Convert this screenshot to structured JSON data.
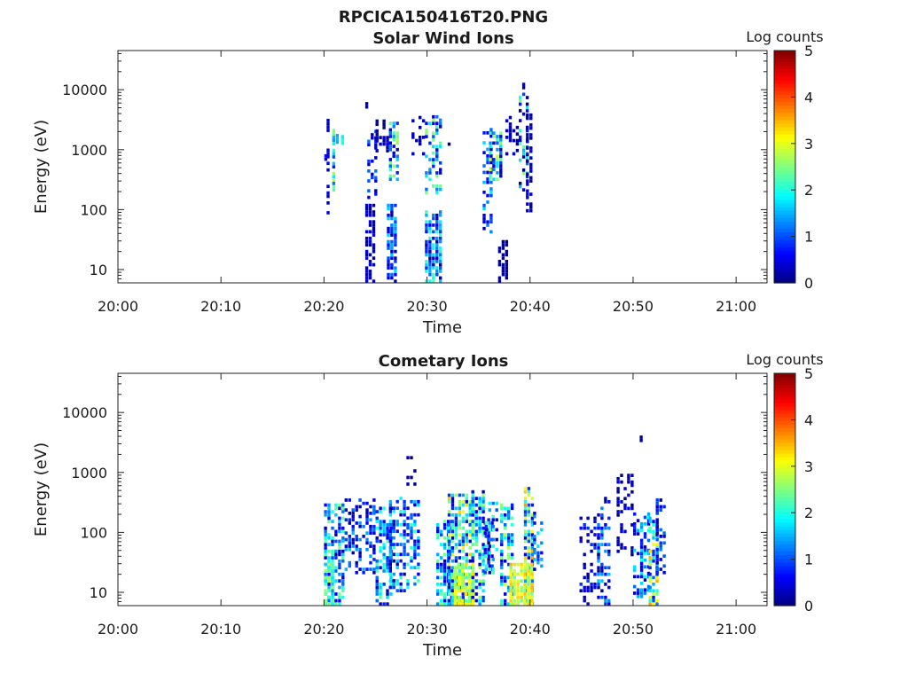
{
  "figure_title": "RPCICA150416T20.PNG",
  "chart_data": [
    {
      "type": "heatmap",
      "title": "Solar Wind Ions",
      "xlabel": "Time",
      "ylabel": "Energy (eV)",
      "x_range": [
        "20:00",
        "21:03"
      ],
      "y_range": [
        6,
        45000
      ],
      "y_scale": "log",
      "x_ticks": [
        "20:00",
        "20:10",
        "20:20",
        "20:30",
        "20:40",
        "20:50",
        "21:00"
      ],
      "y_ticks": [
        "10",
        "100",
        "1000",
        "10000"
      ],
      "colorbar": {
        "label": "Log counts",
        "range": [
          0,
          5
        ],
        "ticks": [
          "0",
          "1",
          "2",
          "3",
          "4",
          "5"
        ],
        "colormap": "jet"
      },
      "clusters": [
        {
          "t": [
            20.03,
            20.03
          ],
          "e": [
            650,
            1500
          ],
          "level": [
            0.4,
            0.8
          ],
          "density": 0.5
        },
        {
          "t": [
            20.25,
            20.45
          ],
          "e": [
            50,
            3000
          ],
          "level": [
            0.1,
            0.6
          ],
          "density": 0.35
        },
        {
          "t": [
            20.8,
            21.1
          ],
          "e": [
            200,
            2500
          ],
          "level": [
            0.6,
            2.8
          ],
          "density": 0.7
        },
        {
          "t": [
            21.15,
            21.3
          ],
          "e": [
            1100,
            1900
          ],
          "level": [
            1.4,
            2.3
          ],
          "density": 0.6
        },
        {
          "t": [
            21.65,
            21.75
          ],
          "e": [
            1200,
            1700
          ],
          "level": [
            1.5,
            2.2
          ],
          "density": 0.8
        },
        {
          "t": [
            24.0,
            24.2
          ],
          "e": [
            1200,
            7500
          ],
          "level": [
            0.0,
            0.3
          ],
          "density": 0.3
        },
        {
          "t": [
            24.2,
            24.9
          ],
          "e": [
            150,
            2000
          ],
          "level": [
            0.1,
            1.2
          ],
          "density": 0.45
        },
        {
          "t": [
            24.0,
            24.7
          ],
          "e": [
            6,
            120
          ],
          "level": [
            0.0,
            0.6
          ],
          "density": 0.7
        },
        {
          "t": [
            25.0,
            26.2
          ],
          "e": [
            900,
            3000
          ],
          "level": [
            0.0,
            0.5
          ],
          "density": 0.3
        },
        {
          "t": [
            26.3,
            27.0
          ],
          "e": [
            300,
            3000
          ],
          "level": [
            0.1,
            2.8
          ],
          "density": 0.5
        },
        {
          "t": [
            26.1,
            27.0
          ],
          "e": [
            6,
            120
          ],
          "level": [
            0.1,
            1.8
          ],
          "density": 0.7
        },
        {
          "t": [
            28.5,
            29.8
          ],
          "e": [
            800,
            3500
          ],
          "level": [
            0.0,
            0.4
          ],
          "density": 0.25
        },
        {
          "t": [
            29.8,
            31.4
          ],
          "e": [
            180,
            3500
          ],
          "level": [
            0.3,
            2.7
          ],
          "density": 0.5
        },
        {
          "t": [
            29.8,
            31.4
          ],
          "e": [
            6,
            90
          ],
          "level": [
            0.2,
            2.3
          ],
          "density": 0.8
        },
        {
          "t": [
            32.0,
            32.2
          ],
          "e": [
            900,
            1200
          ],
          "level": [
            0.0,
            0.3
          ],
          "density": 0.5
        },
        {
          "t": [
            35.4,
            36.2
          ],
          "e": [
            40,
            2500
          ],
          "level": [
            0.0,
            1.8
          ],
          "density": 0.4
        },
        {
          "t": [
            36.0,
            37.1
          ],
          "e": [
            300,
            1800
          ],
          "level": [
            0.2,
            2.9
          ],
          "density": 0.55
        },
        {
          "t": [
            36.9,
            37.6
          ],
          "e": [
            6,
            30
          ],
          "level": [
            0.0,
            0.2
          ],
          "density": 0.6
        },
        {
          "t": [
            37.6,
            38.7
          ],
          "e": [
            800,
            3500
          ],
          "level": [
            0.0,
            0.5
          ],
          "density": 0.3
        },
        {
          "t": [
            38.9,
            39.6
          ],
          "e": [
            200,
            12000
          ],
          "level": [
            0.0,
            2.6
          ],
          "density": 0.45
        },
        {
          "t": [
            39.6,
            40.2
          ],
          "e": [
            90,
            4200
          ],
          "level": [
            0.0,
            0.6
          ],
          "density": 0.5
        }
      ]
    },
    {
      "type": "heatmap",
      "title": "Cometary Ions",
      "xlabel": "Time",
      "ylabel": "Energy (eV)",
      "x_range": [
        "20:00",
        "21:03"
      ],
      "y_range": [
        6,
        45000
      ],
      "y_scale": "log",
      "x_ticks": [
        "20:00",
        "20:10",
        "20:20",
        "20:30",
        "20:40",
        "20:50",
        "21:00"
      ],
      "y_ticks": [
        "10",
        "100",
        "1000",
        "10000"
      ],
      "colorbar": {
        "label": "Log counts",
        "range": [
          0,
          5
        ],
        "ticks": [
          "0",
          "1",
          "2",
          "3",
          "4",
          "5"
        ],
        "colormap": "jet"
      },
      "clusters": [
        {
          "t": [
            20.0,
            21.8
          ],
          "e": [
            6,
            300
          ],
          "level": [
            0.2,
            2.5
          ],
          "density": 0.6
        },
        {
          "t": [
            20.0,
            20.8
          ],
          "e": [
            6,
            30
          ],
          "level": [
            1.6,
            2.8
          ],
          "density": 0.75
        },
        {
          "t": [
            22.0,
            24.9
          ],
          "e": [
            20,
            350
          ],
          "level": [
            0.1,
            1.6
          ],
          "density": 0.45
        },
        {
          "t": [
            25.0,
            26.5
          ],
          "e": [
            6,
            250
          ],
          "level": [
            0.3,
            2.4
          ],
          "density": 0.55
        },
        {
          "t": [
            26.3,
            29.1
          ],
          "e": [
            10,
            350
          ],
          "level": [
            0.1,
            2.2
          ],
          "density": 0.5
        },
        {
          "t": [
            28.0,
            29.0
          ],
          "e": [
            600,
            1700
          ],
          "level": [
            0.0,
            0.4
          ],
          "density": 0.25
        },
        {
          "t": [
            30.9,
            32.5
          ],
          "e": [
            6,
            150
          ],
          "level": [
            0.2,
            2.6
          ],
          "density": 0.6
        },
        {
          "t": [
            32.0,
            34.3
          ],
          "e": [
            6,
            400
          ],
          "level": [
            0.3,
            3.4
          ],
          "density": 0.65
        },
        {
          "t": [
            34.3,
            35.5
          ],
          "e": [
            6,
            450
          ],
          "level": [
            0.3,
            2.7
          ],
          "density": 0.6
        },
        {
          "t": [
            35.5,
            36.2
          ],
          "e": [
            20,
            200
          ],
          "level": [
            0.0,
            1.0
          ],
          "density": 0.4
        },
        {
          "t": [
            32.6,
            34.4
          ],
          "e": [
            6,
            30
          ],
          "level": [
            2.2,
            3.3
          ],
          "density": 0.7
        },
        {
          "t": [
            35.6,
            36.8
          ],
          "e": [
            20,
            300
          ],
          "level": [
            0.3,
            2.4
          ],
          "density": 0.5
        },
        {
          "t": [
            37.1,
            38.3
          ],
          "e": [
            6,
            300
          ],
          "level": [
            0.3,
            2.9
          ],
          "density": 0.55
        },
        {
          "t": [
            39.4,
            40.3
          ],
          "e": [
            6,
            550
          ],
          "level": [
            0.5,
            3.6
          ],
          "density": 0.7
        },
        {
          "t": [
            38.0,
            40.3
          ],
          "e": [
            6,
            30
          ],
          "level": [
            2.4,
            3.5
          ],
          "density": 0.75
        },
        {
          "t": [
            40.3,
            41.1
          ],
          "e": [
            20,
            200
          ],
          "level": [
            0.3,
            1.8
          ],
          "density": 0.5
        },
        {
          "t": [
            44.8,
            46.5
          ],
          "e": [
            6,
            200
          ],
          "level": [
            0.0,
            1.0
          ],
          "density": 0.35
        },
        {
          "t": [
            46.5,
            47.6
          ],
          "e": [
            6,
            350
          ],
          "level": [
            0.1,
            1.6
          ],
          "density": 0.5
        },
        {
          "t": [
            48.4,
            50.0
          ],
          "e": [
            40,
            900
          ],
          "level": [
            0.0,
            0.6
          ],
          "density": 0.35
        },
        {
          "t": [
            50.0,
            51.5
          ],
          "e": [
            8,
            200
          ],
          "level": [
            0.2,
            2.0
          ],
          "density": 0.5
        },
        {
          "t": [
            51.5,
            52.2
          ],
          "e": [
            6,
            170
          ],
          "level": [
            0.4,
            3.6
          ],
          "density": 0.65
        },
        {
          "t": [
            52.2,
            53.2
          ],
          "e": [
            20,
            400
          ],
          "level": [
            0.0,
            1.4
          ],
          "density": 0.45
        },
        {
          "t": [
            50.3,
            50.8
          ],
          "e": [
            3200,
            3800
          ],
          "level": [
            0.0,
            0.2
          ],
          "density": 0.6
        }
      ]
    }
  ]
}
